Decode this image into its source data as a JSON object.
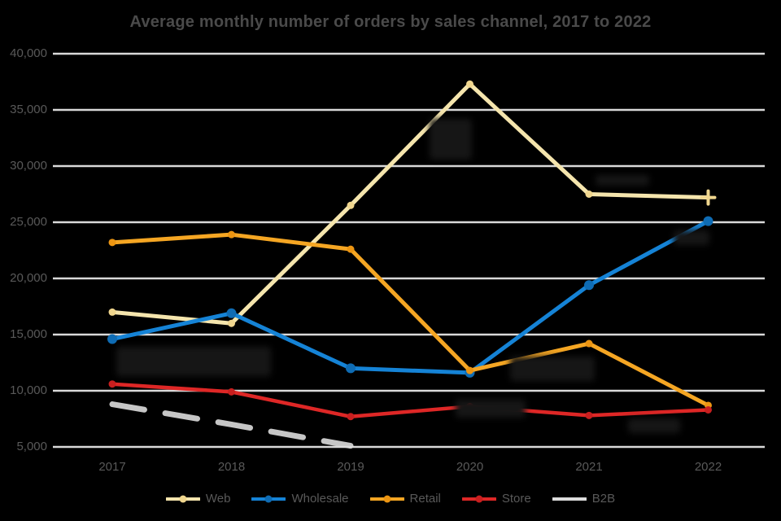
{
  "chart_data": {
    "type": "line",
    "title": "Average monthly number of orders by sales channel, 2017 to 2022",
    "categories": [
      "2017",
      "2018",
      "2019",
      "2020",
      "2021",
      "2022"
    ],
    "series": [
      {
        "name": "Web",
        "color": "#f5e5ad",
        "marker_color": "#f0d68e",
        "values": [
          17000,
          16000,
          26500,
          37300,
          27500,
          27200
        ]
      },
      {
        "name": "Wholesale",
        "color": "#1583d6",
        "marker_color": "#0f6cb4",
        "values": [
          14600,
          16900,
          12000,
          11600,
          19400,
          25100
        ]
      },
      {
        "name": "Retail",
        "color": "#f5a623",
        "marker_color": "#ec9512",
        "values": [
          23200,
          23900,
          22600,
          11800,
          14200,
          8700
        ]
      },
      {
        "name": "Store",
        "color": "#de2726",
        "marker_color": "#c91f1f",
        "values": [
          10600,
          9900,
          7700,
          8600,
          7800,
          8300
        ]
      },
      {
        "name": "B2B",
        "color": "#dcdcdc",
        "marker_color": "#dcdcdc",
        "values": [
          8800,
          7000,
          5100,
          null,
          null,
          null
        ]
      }
    ],
    "xlabel": "",
    "ylabel": "",
    "ylim": [
      5000,
      40000
    ],
    "ytick_step": 5000,
    "y_tick_labels": [
      "40,000",
      "35,000",
      "30,000",
      "25,000",
      "20,000",
      "15,000",
      "10,000",
      "5,000"
    ],
    "grid": "horizontal",
    "gridline_color": "#d9d9d9",
    "axis_text_color": "#595959",
    "title_color": "#4a4a4a",
    "background": "#000000",
    "legend_position": "bottom"
  }
}
